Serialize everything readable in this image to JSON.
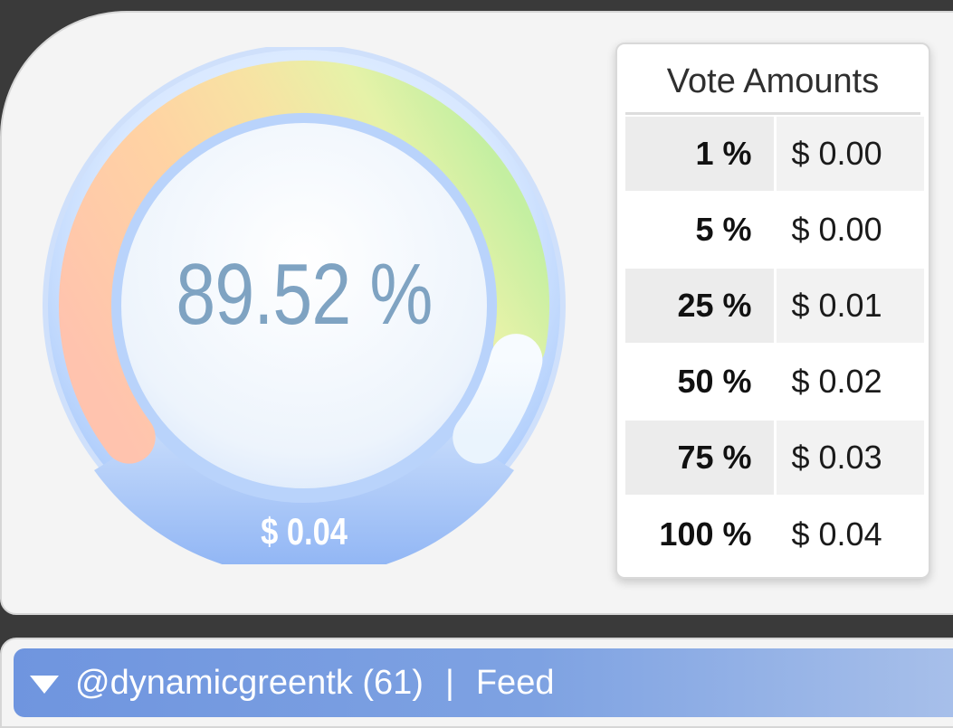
{
  "gauge": {
    "percentage_label": "89.52 %",
    "value_label": "$ 0.04",
    "level": 0.8952
  },
  "vote_amounts": {
    "title": "Vote Amounts",
    "rows": [
      {
        "percent": "1 %",
        "amount": "$ 0.00"
      },
      {
        "percent": "5 %",
        "amount": "$ 0.00"
      },
      {
        "percent": "25 %",
        "amount": "$ 0.01"
      },
      {
        "percent": "50 %",
        "amount": "$ 0.02"
      },
      {
        "percent": "75 %",
        "amount": "$ 0.03"
      },
      {
        "percent": "100 %",
        "amount": "$ 0.04"
      }
    ]
  },
  "feed_header": {
    "account": "@dynamicgreentk (61)",
    "separator": "|",
    "label": "Feed",
    "icon": "caret-down-icon"
  },
  "colors": {
    "background": "#3a3a3a",
    "panel": "#f4f4f4",
    "gauge_text": "#7fa3c2",
    "gauge_ring": "#8fb3f2",
    "feed_bar": "#7ea2e2"
  }
}
